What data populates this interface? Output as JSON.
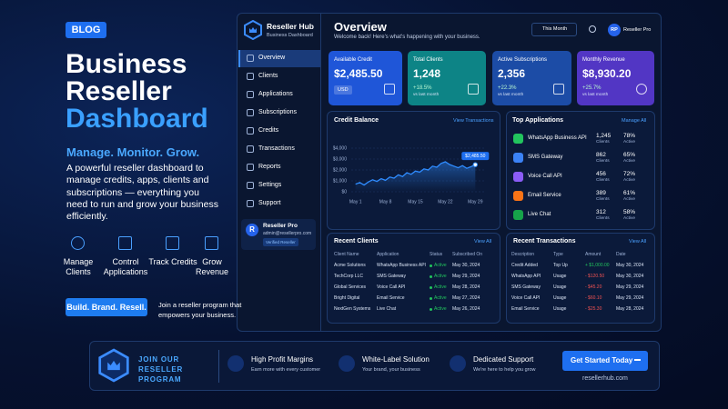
{
  "hero": {
    "badge": "BLOG",
    "title": [
      "Business",
      "Reseller",
      "Dashboard"
    ],
    "tagline": "Manage. Monitor. Grow.",
    "description": "A powerful reseller dashboard to manage credits, apps, clients and subscriptions — everything you need to run and grow your business efficiently.",
    "features": [
      "Manage Clients",
      "Control Applications",
      "Track Credits",
      "Grow Revenue"
    ],
    "button": "Build. Brand. Resell.",
    "button_note": "Join a reseller program that empowers your business."
  },
  "sidebar": {
    "brand": "Reseller Hub",
    "brand_sub": "Business Dashboard",
    "nav": [
      "Overview",
      "Clients",
      "Applications",
      "Subscriptions",
      "Credits",
      "Transactions",
      "Reports",
      "Settings",
      "Support"
    ],
    "user": {
      "initial": "R",
      "name": "Reseller Pro",
      "email": "admin@resellerpro.com",
      "badge": "Verified Reseller"
    }
  },
  "header": {
    "title": "Overview",
    "subtitle": "Welcome back! Here's what's happening with your business.",
    "period": "This Month",
    "avatar": "RP",
    "user": "Reseller Pro"
  },
  "stats": [
    {
      "label": "Available Credit",
      "value": "$2,485.50",
      "badge": "USD",
      "color": "#1f56d8"
    },
    {
      "label": "Total Clients",
      "value": "1,248",
      "change": "+18.5%",
      "note": "vs last month",
      "color": "#0d8486"
    },
    {
      "label": "Active Subscriptions",
      "value": "2,356",
      "change": "+22.3%",
      "note": "vs last month",
      "color": "#1c4ca6"
    },
    {
      "label": "Monthly Revenue",
      "value": "$8,930.20",
      "change": "+25.7%",
      "note": "vs last month",
      "color": "#5236c4"
    }
  ],
  "chart_data": {
    "type": "line",
    "title": "Credit Balance",
    "action": "View Transactions",
    "x": [
      1,
      2,
      3,
      4,
      5,
      6,
      7,
      8,
      9,
      10,
      11,
      12,
      13,
      14,
      15,
      16,
      17,
      18,
      19,
      20,
      21,
      22,
      23,
      24,
      25,
      26,
      27,
      28,
      29
    ],
    "values": [
      700,
      850,
      620,
      900,
      1100,
      950,
      1200,
      1050,
      1350,
      1250,
      1550,
      1400,
      1750,
      1600,
      1900,
      1800,
      2100,
      2000,
      2350,
      2250,
      2600,
      2750,
      2500,
      2350,
      2200,
      2400,
      2150,
      2300,
      2485.5
    ],
    "value_labels": [
      null,
      null,
      null,
      null,
      null,
      null,
      null,
      null,
      null,
      null,
      null,
      null,
      null,
      null,
      null,
      null,
      null,
      null,
      null,
      null,
      null,
      null,
      null,
      null,
      null,
      null,
      null,
      null,
      "$2,485.50"
    ],
    "color": "#2f8cff",
    "xlim": [
      0,
      30
    ],
    "xticks": [
      {
        "value": 1,
        "label": "May 1"
      },
      {
        "value": 8,
        "label": "May 8"
      },
      {
        "value": 15,
        "label": "May 15"
      },
      {
        "value": 22,
        "label": "May 22"
      },
      {
        "value": 29,
        "label": "May 29"
      }
    ],
    "ylim": [
      0,
      4000
    ],
    "yticks": [
      {
        "value": 0,
        "label": "$0"
      },
      {
        "value": 1000,
        "label": "$1,000"
      },
      {
        "value": 2000,
        "label": "$2,000"
      },
      {
        "value": 3000,
        "label": "$3,000"
      },
      {
        "value": 4000,
        "label": "$4,000"
      }
    ],
    "grid": true
  },
  "top_apps": {
    "title": "Top Applications",
    "action": "Manage All",
    "clients_label": "Clients",
    "active_label": "Active",
    "rows": [
      {
        "name": "WhatsApp Business API",
        "clients": "1,245",
        "active": "78%",
        "color": "#22c55e"
      },
      {
        "name": "SMS Gateway",
        "clients": "862",
        "active": "65%",
        "color": "#3b82f6"
      },
      {
        "name": "Voice Call API",
        "clients": "456",
        "active": "72%",
        "color": "#8b5cf6"
      },
      {
        "name": "Email Service",
        "clients": "389",
        "active": "61%",
        "color": "#f97316"
      },
      {
        "name": "Live Chat",
        "clients": "312",
        "active": "58%",
        "color": "#16a34a"
      }
    ]
  },
  "clients": {
    "title": "Recent Clients",
    "action": "View All",
    "columns": [
      "Client Name",
      "Application",
      "Status",
      "Subscribed On"
    ],
    "rows": [
      [
        "Acme Solutions",
        "WhatsApp Business API",
        "Active",
        "May 30, 2024"
      ],
      [
        "TechCorp LLC",
        "SMS Gateway",
        "Active",
        "May 29, 2024"
      ],
      [
        "Global Services",
        "Voice Call API",
        "Active",
        "May 28, 2024"
      ],
      [
        "Bright Digital",
        "Email Service",
        "Active",
        "May 27, 2024"
      ],
      [
        "NextGen Systems",
        "Live Chat",
        "Active",
        "May 26, 2024"
      ]
    ]
  },
  "transactions": {
    "title": "Recent Transactions",
    "action": "View All",
    "columns": [
      "Description",
      "Type",
      "Amount",
      "Date"
    ],
    "rows": [
      [
        "Credit Added",
        "Top Up",
        "+ $1,000.00",
        "May 30, 2024"
      ],
      [
        "WhatsApp API",
        "Usage",
        "- $120.50",
        "May 30, 2024"
      ],
      [
        "SMS Gateway",
        "Usage",
        "- $45.20",
        "May 29, 2024"
      ],
      [
        "Voice Call API",
        "Usage",
        "- $60.10",
        "May 29, 2024"
      ],
      [
        "Email Service",
        "Usage",
        "- $25.30",
        "May 28, 2024"
      ]
    ]
  },
  "banner": {
    "title": "JOIN OUR RESELLER PROGRAM",
    "features": [
      {
        "title": "High Profit Margins",
        "text": "Earn more with every customer"
      },
      {
        "title": "White-Label Solution",
        "text": "Your brand, your business"
      },
      {
        "title": "Dedicated Support",
        "text": "We're here to help you grow"
      }
    ],
    "button": "Get Started Today",
    "site": "resellerhub.com"
  }
}
